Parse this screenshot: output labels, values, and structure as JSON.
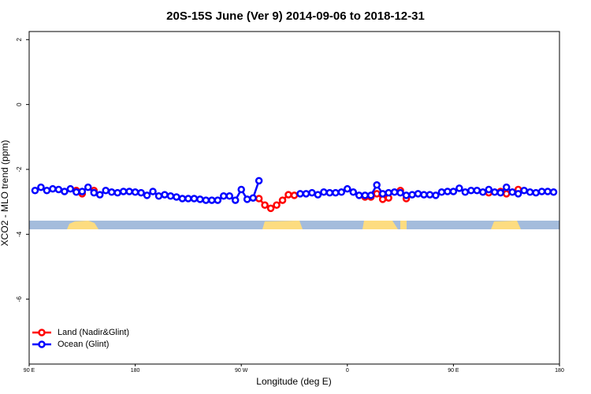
{
  "chart_data": {
    "type": "line",
    "title": "20S-15S June (Ver 9)   2014-09-06 to 2018-12-31",
    "x_label": "Longitude (deg E)",
    "y_label": "XCO2 - MLO trend (ppm)",
    "x": [
      95,
      100,
      105,
      110,
      115,
      120,
      125,
      130,
      135,
      140,
      145,
      150,
      155,
      160,
      165,
      170,
      175,
      180,
      185,
      190,
      195,
      200,
      205,
      210,
      215,
      220,
      225,
      230,
      235,
      240,
      245,
      250,
      255,
      260,
      265,
      270,
      275,
      280,
      285,
      290,
      295,
      300,
      305,
      310,
      315,
      320,
      325,
      330,
      335,
      340,
      345,
      350,
      355,
      360,
      365,
      370,
      375,
      380,
      385,
      390,
      395,
      400,
      405,
      410,
      415,
      420,
      425,
      430,
      435,
      440,
      445,
      450,
      455,
      460,
      465,
      470,
      475,
      480,
      485,
      490,
      495,
      500,
      505,
      510,
      515,
      520,
      525,
      530,
      535
    ],
    "series": [
      {
        "name": "Land (Nadir&Glint)",
        "color": "#ff0000",
        "values": [
          null,
          null,
          null,
          null,
          null,
          null,
          null,
          -2.65,
          -2.75,
          null,
          -2.65,
          null,
          null,
          null,
          null,
          null,
          null,
          null,
          null,
          null,
          null,
          null,
          null,
          null,
          null,
          null,
          null,
          null,
          null,
          null,
          null,
          null,
          null,
          null,
          null,
          null,
          null,
          null,
          -2.9,
          -3.1,
          -3.2,
          -3.1,
          -2.95,
          -2.78,
          -2.8,
          null,
          null,
          null,
          null,
          null,
          null,
          null,
          null,
          null,
          null,
          null,
          -2.85,
          -2.85,
          -2.75,
          -2.92,
          -2.88,
          null,
          -2.65,
          -2.9,
          null,
          null,
          null,
          null,
          null,
          null,
          null,
          null,
          null,
          null,
          null,
          null,
          null,
          -2.72,
          null,
          -2.68,
          -2.75,
          null,
          -2.62,
          null,
          null,
          null,
          null,
          null,
          null
        ]
      },
      {
        "name": "Ocean (Glint)",
        "color": "#0000ff",
        "values": [
          -2.65,
          -2.55,
          -2.65,
          -2.6,
          -2.62,
          -2.68,
          -2.6,
          -2.7,
          -2.68,
          -2.55,
          -2.72,
          -2.78,
          -2.65,
          -2.7,
          -2.72,
          -2.68,
          -2.68,
          -2.7,
          -2.72,
          -2.8,
          -2.68,
          -2.82,
          -2.78,
          -2.82,
          -2.85,
          -2.9,
          -2.9,
          -2.9,
          -2.92,
          -2.95,
          -2.95,
          -2.95,
          -2.82,
          -2.82,
          -2.95,
          -2.62,
          -2.92,
          -2.88,
          -2.35,
          null,
          null,
          null,
          null,
          null,
          null,
          -2.75,
          -2.75,
          -2.72,
          -2.78,
          -2.7,
          -2.72,
          -2.72,
          -2.7,
          -2.6,
          -2.7,
          -2.8,
          -2.8,
          -2.8,
          -2.48,
          -2.75,
          -2.72,
          -2.7,
          -2.72,
          -2.8,
          -2.78,
          -2.75,
          -2.78,
          -2.78,
          -2.8,
          -2.7,
          -2.68,
          -2.68,
          -2.58,
          -2.7,
          -2.65,
          -2.65,
          -2.7,
          -2.62,
          -2.7,
          -2.72,
          -2.55,
          -2.7,
          -2.75,
          -2.65,
          -2.7,
          -2.72,
          -2.68,
          -2.68,
          -2.7
        ]
      }
    ],
    "xlim": [
      90,
      540
    ],
    "xticks": [
      {
        "value": 90,
        "label": "90 E"
      },
      180,
      {
        "value": 270,
        "label": "90 W"
      },
      {
        "value": 360,
        "label": "0"
      },
      {
        "value": 450,
        "label": "90 E"
      },
      {
        "value": 540,
        "label": "180"
      }
    ],
    "ylim": [
      -8,
      2.25
    ],
    "yticks": [
      2,
      0,
      -2,
      -4,
      -6
    ],
    "legend": "bottom-left"
  }
}
